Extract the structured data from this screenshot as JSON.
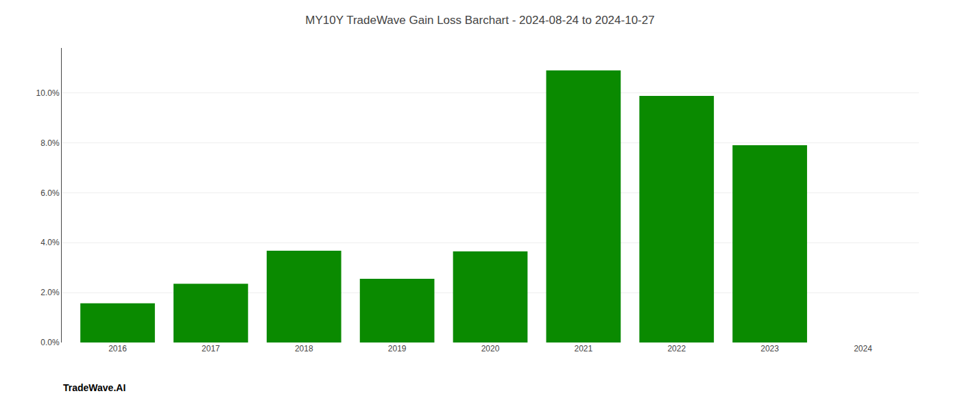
{
  "chart_data": {
    "type": "bar",
    "title": "MY10Y TradeWave Gain Loss Barchart - 2024-08-24 to 2024-10-27",
    "annotations": [
      "TradeWave.AI"
    ],
    "categories": [
      "2016",
      "2017",
      "2018",
      "2019",
      "2020",
      "2021",
      "2022",
      "2023",
      "2024"
    ],
    "values": [
      0.0157,
      0.0235,
      0.0368,
      0.0255,
      0.0365,
      0.109,
      0.0988,
      0.079,
      null
    ],
    "color": "#0a8a00",
    "ylim": [
      0,
      0.118
    ],
    "yticks": [
      {
        "value": 0.0,
        "label": "0.0%"
      },
      {
        "value": 0.02,
        "label": "2.0%"
      },
      {
        "value": 0.04,
        "label": "4.0%"
      },
      {
        "value": 0.06,
        "label": "6.0%"
      },
      {
        "value": 0.08,
        "label": "8.0%"
      },
      {
        "value": 0.1,
        "label": "10.0%"
      }
    ],
    "grid": true
  }
}
